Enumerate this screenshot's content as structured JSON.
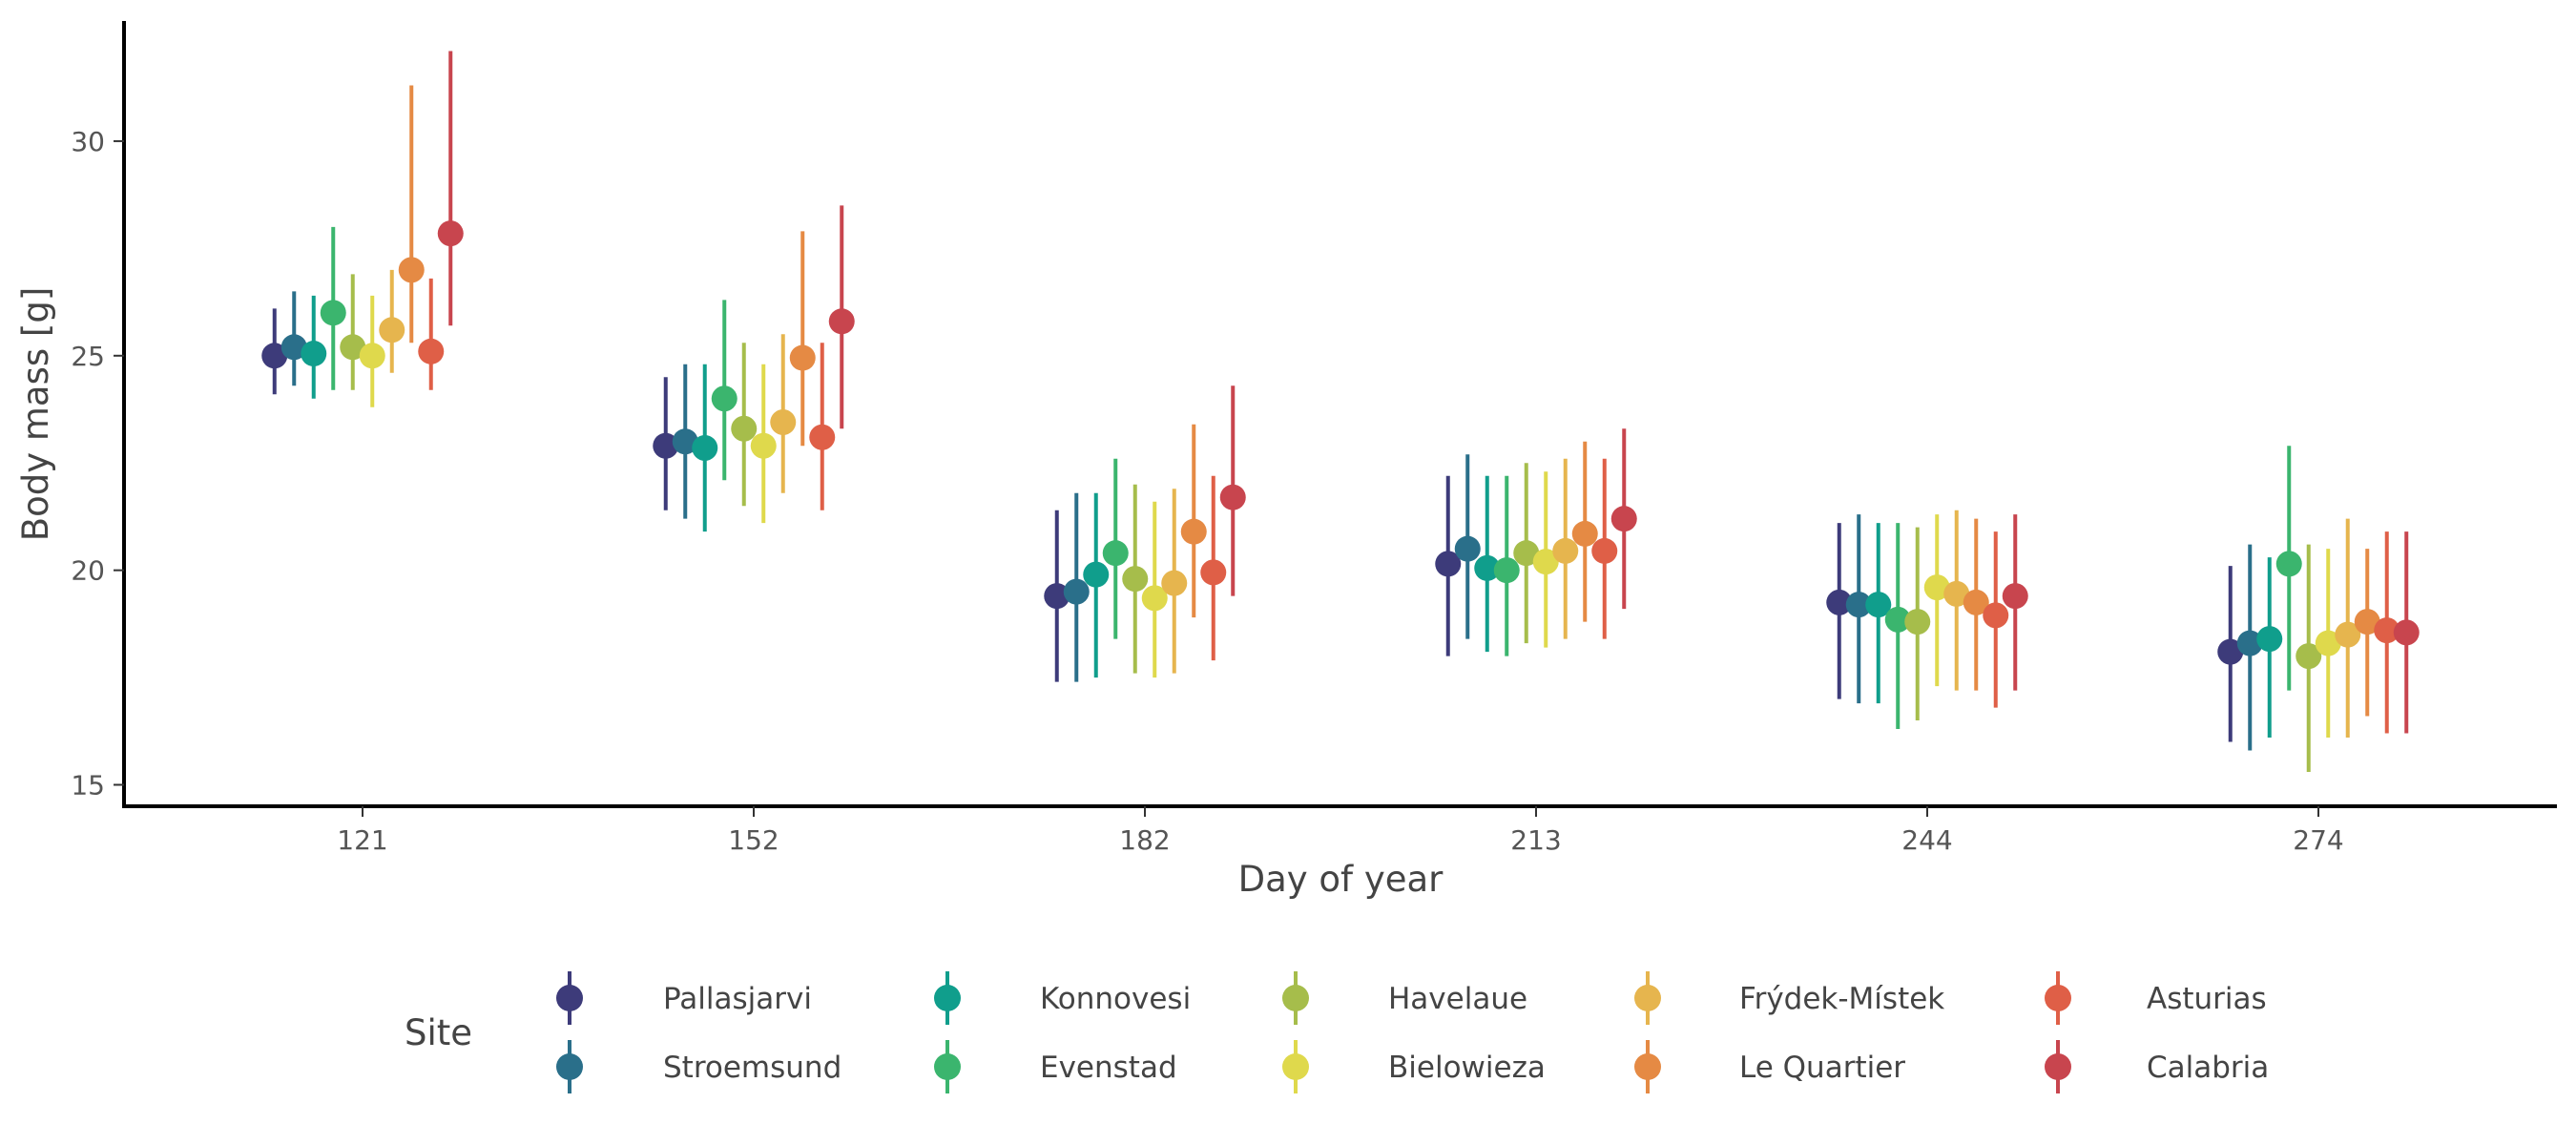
{
  "chart_data": {
    "type": "scatter",
    "subtype": "pointrange",
    "xlabel": "Day of year",
    "ylabel": "Body mass [g]",
    "categories": [
      "121",
      "152",
      "182",
      "213",
      "244",
      "274"
    ],
    "y_ticks": [
      15,
      20,
      25,
      30
    ],
    "ylim": [
      14.5,
      32.8
    ],
    "grid": false,
    "legend": {
      "title": "Site",
      "position": "bottom"
    },
    "series": [
      {
        "name": "Pallasjarvi",
        "color": "#3d3b7a",
        "values": [
          25.0,
          22.9,
          19.4,
          20.15,
          19.25,
          18.1
        ],
        "lower": [
          24.1,
          21.4,
          17.4,
          18.0,
          17.0,
          16.0
        ],
        "upper": [
          26.1,
          24.5,
          21.4,
          22.2,
          21.1,
          20.1
        ]
      },
      {
        "name": "Stroemsund",
        "color": "#2a6f8a",
        "values": [
          25.2,
          23.0,
          19.5,
          20.5,
          19.2,
          18.3
        ],
        "lower": [
          24.3,
          21.2,
          17.4,
          18.4,
          16.9,
          15.8
        ],
        "upper": [
          26.5,
          24.8,
          21.8,
          22.7,
          21.3,
          20.6
        ]
      },
      {
        "name": "Konnovesi",
        "color": "#109e8c",
        "values": [
          25.05,
          22.85,
          19.9,
          20.05,
          19.2,
          18.4
        ],
        "lower": [
          24.0,
          20.9,
          17.5,
          18.1,
          16.9,
          16.1
        ],
        "upper": [
          26.4,
          24.8,
          21.8,
          22.2,
          21.1,
          20.3
        ]
      },
      {
        "name": "Evenstad",
        "color": "#3bb56e",
        "values": [
          26.0,
          24.0,
          20.4,
          20.0,
          18.85,
          20.15
        ],
        "lower": [
          24.2,
          22.1,
          18.4,
          18.0,
          16.3,
          17.2
        ],
        "upper": [
          28.0,
          26.3,
          22.6,
          22.2,
          21.1,
          22.9
        ]
      },
      {
        "name": "Havelaue",
        "color": "#a6bd4b",
        "values": [
          25.2,
          23.3,
          19.8,
          20.4,
          18.8,
          18.0
        ],
        "lower": [
          24.2,
          21.5,
          17.6,
          18.3,
          16.5,
          15.3
        ],
        "upper": [
          26.9,
          25.3,
          22.0,
          22.5,
          21.0,
          20.6
        ]
      },
      {
        "name": "Bielowieza",
        "color": "#dfd94c",
        "values": [
          25.0,
          22.9,
          19.35,
          20.2,
          19.6,
          18.3
        ],
        "lower": [
          23.8,
          21.1,
          17.5,
          18.2,
          17.3,
          16.1
        ],
        "upper": [
          26.4,
          24.8,
          21.6,
          22.3,
          21.3,
          20.5
        ]
      },
      {
        "name": "Frýdek-Místek",
        "color": "#e6b54e",
        "values": [
          25.6,
          23.45,
          19.7,
          20.45,
          19.45,
          18.5
        ],
        "lower": [
          24.6,
          21.8,
          17.6,
          18.4,
          17.2,
          16.1
        ],
        "upper": [
          27.0,
          25.5,
          21.9,
          22.6,
          21.4,
          21.2
        ]
      },
      {
        "name": "Le Quartier",
        "color": "#e58a44",
        "values": [
          27.0,
          24.95,
          20.9,
          20.85,
          19.25,
          18.8
        ],
        "lower": [
          25.3,
          22.9,
          18.9,
          18.8,
          17.2,
          16.6
        ],
        "upper": [
          31.3,
          27.9,
          23.4,
          23.0,
          21.2,
          20.5
        ]
      },
      {
        "name": "Asturias",
        "color": "#df5f47",
        "values": [
          25.1,
          23.1,
          19.95,
          20.45,
          18.95,
          18.6
        ],
        "lower": [
          24.2,
          21.4,
          17.9,
          18.4,
          16.8,
          16.2
        ],
        "upper": [
          26.8,
          25.3,
          22.2,
          22.6,
          20.9,
          20.9
        ]
      },
      {
        "name": "Calabria",
        "color": "#c8454e",
        "values": [
          27.85,
          25.8,
          21.7,
          21.2,
          19.4,
          18.55
        ],
        "lower": [
          25.7,
          23.3,
          19.4,
          19.1,
          17.2,
          16.2
        ],
        "upper": [
          32.1,
          28.5,
          24.3,
          23.3,
          21.3,
          20.9
        ]
      }
    ]
  }
}
